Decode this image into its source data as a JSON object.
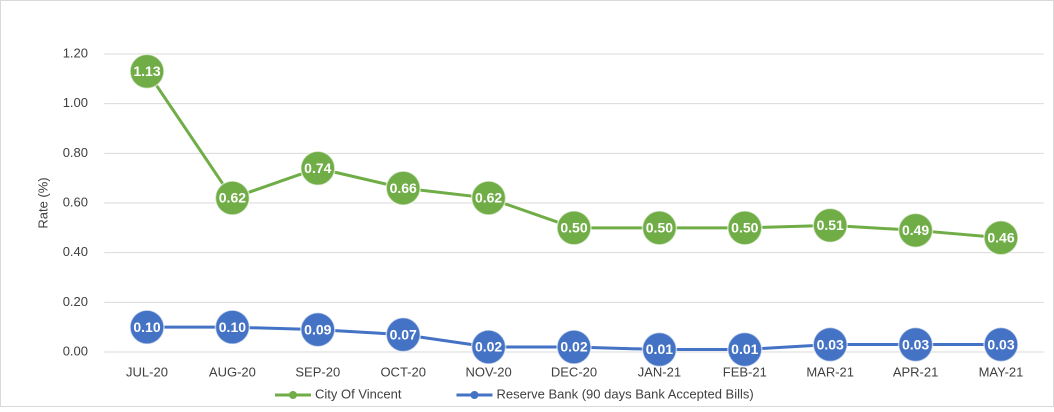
{
  "chart_data": {
    "type": "line",
    "y_label": "Rate (%)",
    "categories": [
      "JUL-20",
      "AUG-20",
      "SEP-20",
      "OCT-20",
      "NOV-20",
      "DEC-20",
      "JAN-21",
      "FEB-21",
      "MAR-21",
      "APR-21",
      "MAY-21"
    ],
    "series": [
      {
        "name": "City Of Vincent",
        "color": "#70ad47",
        "values": [
          1.13,
          0.62,
          0.74,
          0.66,
          0.62,
          0.5,
          0.5,
          0.5,
          0.51,
          0.49,
          0.46
        ],
        "value_labels": [
          "1.13",
          "0.62",
          "0.74",
          "0.66",
          "0.62",
          "0.50",
          "0.50",
          "0.50",
          "0.51",
          "0.49",
          "0.46"
        ]
      },
      {
        "name": "Reserve Bank (90 days Bank Accepted Bills)",
        "color": "#4472c4",
        "values": [
          0.1,
          0.1,
          0.09,
          0.07,
          0.02,
          0.02,
          0.01,
          0.01,
          0.03,
          0.03,
          0.03
        ],
        "value_labels": [
          "0.10",
          "0.10",
          "0.09",
          "0.07",
          "0.02",
          "0.02",
          "0.01",
          "0.01",
          "0.03",
          "0.03",
          "0.03"
        ]
      }
    ],
    "ylim": [
      0,
      1.2
    ],
    "yticks": [
      {
        "value": 0,
        "label": "0.00"
      },
      {
        "value": 0.2,
        "label": "0.20"
      },
      {
        "value": 0.4,
        "label": "0.40"
      },
      {
        "value": 0.6,
        "label": "0.60"
      },
      {
        "value": 0.8,
        "label": "0.80"
      },
      {
        "value": 1,
        "label": "1.00"
      },
      {
        "value": 1.2,
        "label": "1.20"
      }
    ],
    "grid": true,
    "legend": "bottom"
  }
}
